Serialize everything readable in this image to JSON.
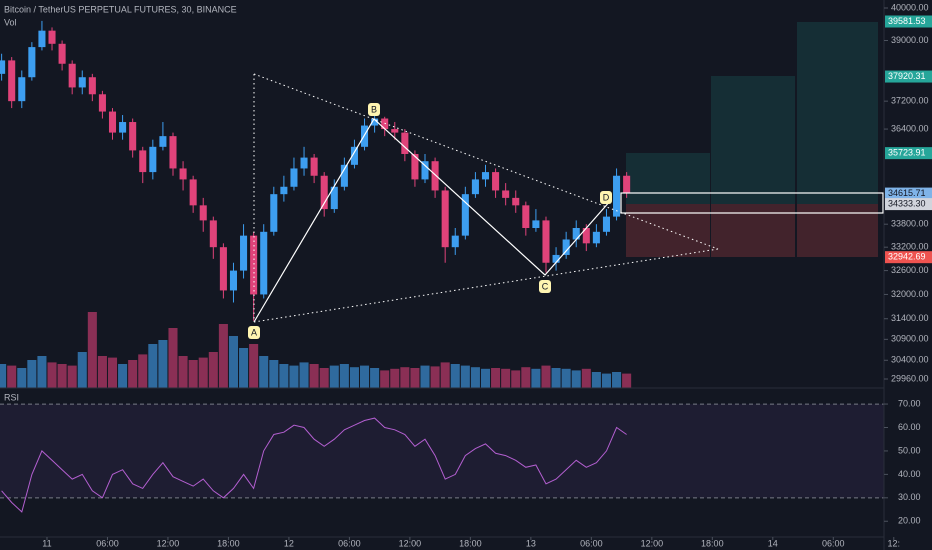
{
  "chart_data": {
    "type": "candlestick",
    "title": "Bitcoin / TetherUS PERPETUAL FUTURES, 30, BINANCE",
    "log_scale": true,
    "x": [
      -4.5,
      -3.5,
      -2.5,
      -1.5,
      -0.5,
      0.5,
      1.5,
      2.5,
      3.5,
      4.5,
      5.5,
      6.5,
      7.5,
      8.5,
      9.5,
      10.5,
      11.5,
      12.5,
      13.5,
      14.5,
      15.5,
      16.5,
      17.5,
      18.5,
      19.5,
      20.5,
      21.5,
      22.5,
      23.5,
      24.5,
      25.5,
      26.5,
      27.5,
      28.5,
      29.5,
      30.5,
      31.5,
      32.5,
      33.5,
      34.5,
      35.5,
      36.5,
      37.5,
      38.5,
      39.5,
      40.5,
      41.5,
      42.5,
      43.5,
      44.5,
      45.5,
      46.5,
      47.5,
      48.5,
      49.5,
      50.5,
      51.5,
      52.5,
      53.5,
      54.5,
      55.5,
      56.5,
      57.5
    ],
    "open": [
      38000,
      38400,
      37200,
      37900,
      38800,
      39300,
      38900,
      38300,
      37600,
      37900,
      37400,
      36900,
      36300,
      36600,
      35800,
      35200,
      35900,
      36200,
      35300,
      35000,
      34300,
      33900,
      33200,
      32100,
      32600,
      33500,
      32000,
      33600,
      34600,
      34800,
      35300,
      35600,
      35100,
      34200,
      34800,
      35400,
      35900,
      36500,
      36700,
      36400,
      36300,
      35700,
      35000,
      35500,
      34700,
      33200,
      33500,
      34600,
      35000,
      35200,
      34700,
      34500,
      34300,
      33700,
      33900,
      32800,
      33000,
      33400,
      33700,
      33300,
      33600,
      34000,
      35100
    ],
    "high": [
      38600,
      38500,
      38100,
      38950,
      39600,
      39400,
      39000,
      38400,
      38100,
      38000,
      37500,
      37000,
      36800,
      36700,
      35900,
      36100,
      36600,
      36300,
      35500,
      35100,
      34500,
      34000,
      33300,
      32800,
      33800,
      33600,
      33800,
      34800,
      35100,
      35600,
      35900,
      35700,
      35200,
      35000,
      35600,
      36100,
      36700,
      36800,
      36750,
      36600,
      36400,
      35800,
      35700,
      35600,
      34800,
      33700,
      34800,
      35200,
      35400,
      35300,
      34900,
      34700,
      34400,
      34200,
      34000,
      33200,
      33600,
      33900,
      33800,
      33800,
      34200,
      35300,
      35200
    ],
    "low": [
      37800,
      37000,
      37000,
      37800,
      38700,
      38700,
      38100,
      37400,
      37400,
      37200,
      36700,
      36100,
      36100,
      35600,
      34900,
      35000,
      35800,
      35100,
      34700,
      34100,
      33600,
      32900,
      31900,
      31800,
      32400,
      31350,
      31900,
      33500,
      34400,
      34700,
      35100,
      34900,
      34000,
      34100,
      34700,
      35300,
      35800,
      36300,
      36200,
      36100,
      35500,
      34800,
      34900,
      34500,
      32800,
      33000,
      33400,
      34500,
      34800,
      34500,
      34300,
      34100,
      33500,
      33600,
      32550,
      32600,
      32900,
      33200,
      33100,
      33200,
      33500,
      33900,
      34500
    ],
    "close": [
      38400,
      37200,
      37900,
      38800,
      39300,
      38900,
      38300,
      37600,
      37900,
      37400,
      36900,
      36300,
      36600,
      35800,
      35200,
      35900,
      36200,
      35300,
      35000,
      34300,
      33900,
      33200,
      32100,
      32600,
      33500,
      32000,
      33600,
      34600,
      34800,
      35300,
      35600,
      35100,
      34200,
      34800,
      35400,
      35900,
      36500,
      36700,
      36400,
      36300,
      35700,
      35000,
      35500,
      34700,
      33200,
      33500,
      34600,
      35000,
      35200,
      34700,
      34500,
      34300,
      33700,
      33900,
      32800,
      33000,
      33400,
      33700,
      33300,
      33600,
      34000,
      35100,
      34620
    ],
    "up_color": "#3d9ef0",
    "down_color": "#e0437a",
    "xlim": [
      -4.66,
      83.03
    ],
    "xticks": [
      {
        "value": 0,
        "label": "11"
      },
      {
        "value": 6,
        "label": "06:00"
      },
      {
        "value": 12,
        "label": "12:00"
      },
      {
        "value": 18,
        "label": "18:00"
      },
      {
        "value": 24,
        "label": "12"
      },
      {
        "value": 30,
        "label": "06:00"
      },
      {
        "value": 36,
        "label": "12:00"
      },
      {
        "value": 42,
        "label": "18:00"
      },
      {
        "value": 48,
        "label": "13"
      },
      {
        "value": 54,
        "label": "06:00"
      },
      {
        "value": 60,
        "label": "12:00"
      },
      {
        "value": 66,
        "label": "18:00"
      },
      {
        "value": 72,
        "label": "14"
      },
      {
        "value": 78,
        "label": "06:00"
      },
      {
        "value": 84,
        "label": "12:"
      }
    ],
    "ylim": [
      29960,
      40000
    ],
    "yticks": [
      {
        "value": 40000,
        "label": "40000.00"
      },
      {
        "value": 39000,
        "label": "39000.00"
      },
      {
        "value": 37200,
        "label": "37200.00"
      },
      {
        "value": 36400,
        "label": "36400.00"
      },
      {
        "value": 33800,
        "label": "33800.00"
      },
      {
        "value": 33200,
        "label": "33200.00"
      },
      {
        "value": 32600,
        "label": "32600.00"
      },
      {
        "value": 32000,
        "label": "32000.00"
      },
      {
        "value": 31400,
        "label": "31400.00"
      },
      {
        "value": 30900,
        "label": "30900.00"
      },
      {
        "value": 30400,
        "label": "30400.00"
      },
      {
        "value": 29960,
        "label": "29960.00"
      }
    ],
    "price_tags": [
      {
        "value": 39581.53,
        "label": "39581.53",
        "color": "#26a69a"
      },
      {
        "value": 37920.31,
        "label": "37920.31",
        "color": "#26a69a"
      },
      {
        "value": 35723.91,
        "label": "35723.91",
        "color": "#26a69a"
      },
      {
        "value": 34615.71,
        "label": "34615.71",
        "color": "#7fb3e8"
      },
      {
        "value": 34333.3,
        "label": "34333.30",
        "color": "#d1d4dc"
      },
      {
        "value": 32942.69,
        "label": "32942.69",
        "color": "#ef5350"
      }
    ],
    "pattern_labels": [
      "A",
      "B",
      "C",
      "D"
    ],
    "volume": {
      "name": "Vol",
      "ylim": [
        0,
        100
      ],
      "up_color": "#2f6a9e",
      "down_color": "#8a2f55",
      "values": [
        30,
        28,
        25,
        35,
        40,
        32,
        30,
        28,
        45,
        95,
        40,
        38,
        30,
        35,
        42,
        55,
        60,
        75,
        40,
        35,
        38,
        45,
        80,
        65,
        50,
        55,
        40,
        35,
        30,
        28,
        32,
        30,
        25,
        28,
        30,
        26,
        28,
        25,
        22,
        24,
        26,
        25,
        28,
        27,
        32,
        30,
        28,
        26,
        24,
        25,
        24,
        22,
        26,
        24,
        28,
        25,
        24,
        22,
        24,
        20,
        18,
        20,
        18
      ]
    },
    "rsi": {
      "name": "RSI",
      "color": "#b35fd0",
      "ylim": [
        12,
        76
      ],
      "band": [
        30,
        70
      ],
      "yticks": [
        {
          "value": 70,
          "label": "70.00"
        },
        {
          "value": 60,
          "label": "60.00"
        },
        {
          "value": 50,
          "label": "50.00"
        },
        {
          "value": 40,
          "label": "40.00"
        },
        {
          "value": 30,
          "label": "30.00"
        },
        {
          "value": 20,
          "label": "20.00"
        }
      ],
      "values": [
        33,
        28,
        24,
        40,
        50,
        46,
        42,
        38,
        40,
        33,
        30,
        40,
        42,
        36,
        34,
        40,
        45,
        39,
        37,
        35,
        38,
        33,
        30,
        34,
        40,
        34,
        50,
        57,
        58,
        61,
        60,
        55,
        52,
        55,
        59,
        61,
        63,
        64,
        60,
        59,
        57,
        52,
        55,
        48,
        38,
        40,
        48,
        51,
        53,
        49,
        48,
        46,
        43,
        44,
        36,
        38,
        42,
        46,
        43,
        45,
        50,
        60,
        57
      ]
    }
  }
}
